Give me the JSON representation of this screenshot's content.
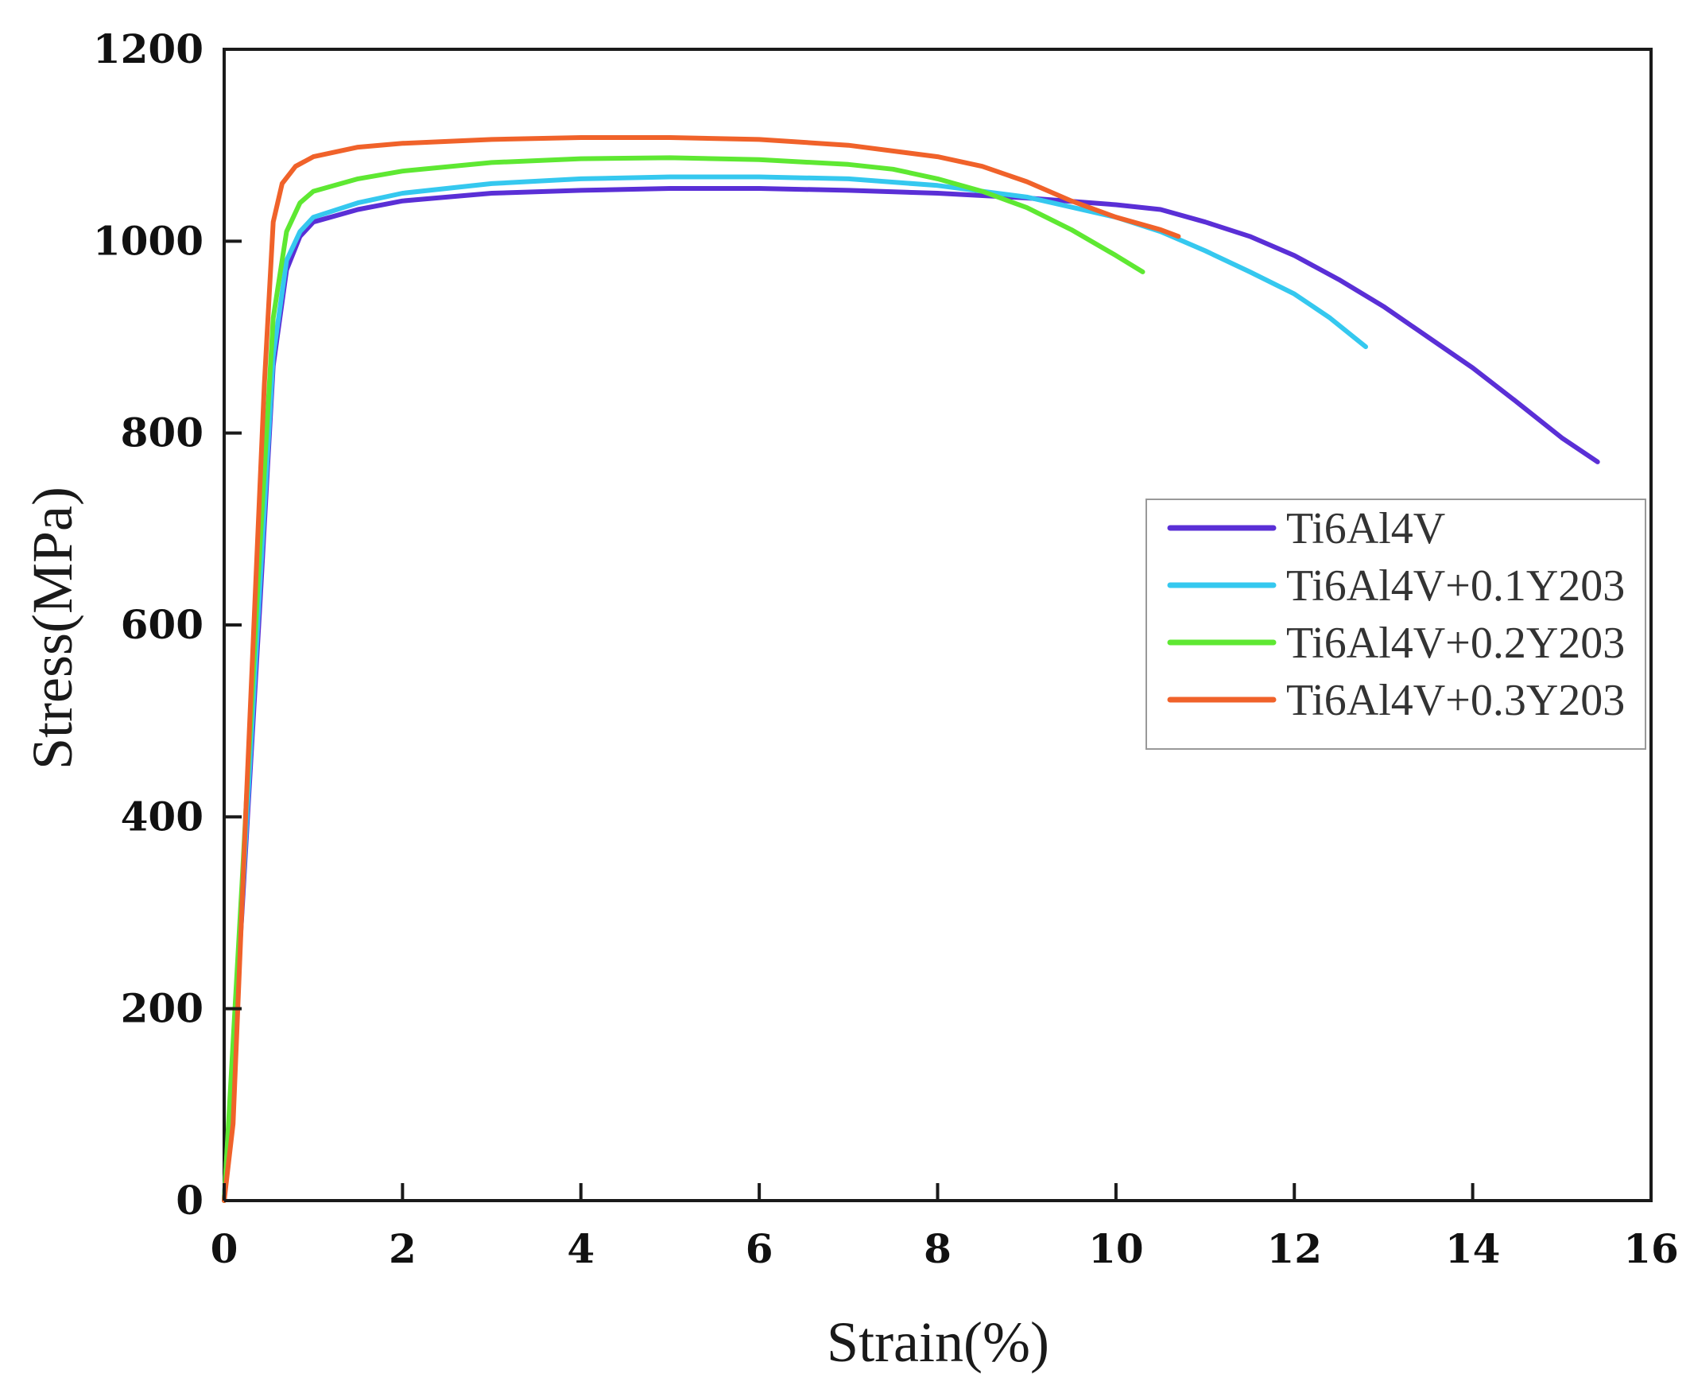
{
  "chart_data": {
    "type": "line",
    "title": "",
    "xlabel": "Strain(%)",
    "ylabel": "Stress(MPa)",
    "xlim": [
      0,
      16
    ],
    "ylim": [
      0,
      1200
    ],
    "xticks": [
      0,
      2,
      4,
      6,
      8,
      10,
      12,
      14,
      16
    ],
    "yticks": [
      0,
      200,
      400,
      600,
      800,
      1000,
      1200
    ],
    "grid": false,
    "legend_position": "right",
    "series": [
      {
        "name": "Ti6Al4V",
        "color": "#5a2fd6",
        "points": [
          [
            0,
            0
          ],
          [
            0.2,
            300
          ],
          [
            0.4,
            620
          ],
          [
            0.55,
            870
          ],
          [
            0.7,
            970
          ],
          [
            0.85,
            1005
          ],
          [
            1,
            1020
          ],
          [
            1.5,
            1033
          ],
          [
            2,
            1042
          ],
          [
            3,
            1050
          ],
          [
            4,
            1053
          ],
          [
            5,
            1055
          ],
          [
            6,
            1055
          ],
          [
            7,
            1053
          ],
          [
            8,
            1050
          ],
          [
            9,
            1045
          ],
          [
            10,
            1038
          ],
          [
            10.5,
            1033
          ],
          [
            11,
            1020
          ],
          [
            11.5,
            1005
          ],
          [
            12,
            985
          ],
          [
            12.5,
            960
          ],
          [
            13,
            932
          ],
          [
            13.5,
            900
          ],
          [
            14,
            868
          ],
          [
            14.5,
            832
          ],
          [
            15,
            795
          ],
          [
            15.4,
            770
          ]
        ]
      },
      {
        "name": "Ti6Al4V+0.1Y203",
        "color": "#35c8ef",
        "points": [
          [
            0,
            0
          ],
          [
            0.2,
            310
          ],
          [
            0.4,
            640
          ],
          [
            0.55,
            880
          ],
          [
            0.7,
            980
          ],
          [
            0.85,
            1010
          ],
          [
            1,
            1025
          ],
          [
            1.5,
            1040
          ],
          [
            2,
            1050
          ],
          [
            3,
            1060
          ],
          [
            4,
            1065
          ],
          [
            5,
            1067
          ],
          [
            6,
            1067
          ],
          [
            7,
            1065
          ],
          [
            8,
            1058
          ],
          [
            9,
            1046
          ],
          [
            10,
            1025
          ],
          [
            10.5,
            1010
          ],
          [
            11,
            990
          ],
          [
            11.5,
            968
          ],
          [
            12,
            945
          ],
          [
            12.4,
            920
          ],
          [
            12.8,
            890
          ]
        ]
      },
      {
        "name": "Ti6Al4V+0.2Y203",
        "color": "#5ee832",
        "points": [
          [
            0,
            0
          ],
          [
            0.2,
            330
          ],
          [
            0.4,
            680
          ],
          [
            0.55,
            920
          ],
          [
            0.7,
            1010
          ],
          [
            0.85,
            1040
          ],
          [
            1,
            1052
          ],
          [
            1.5,
            1065
          ],
          [
            2,
            1073
          ],
          [
            3,
            1082
          ],
          [
            4,
            1086
          ],
          [
            5,
            1087
          ],
          [
            6,
            1085
          ],
          [
            7,
            1080
          ],
          [
            7.5,
            1075
          ],
          [
            8,
            1065
          ],
          [
            8.5,
            1052
          ],
          [
            9,
            1035
          ],
          [
            9.5,
            1012
          ],
          [
            10,
            985
          ],
          [
            10.3,
            968
          ]
        ]
      },
      {
        "name": "Ti6Al4V+0.3Y203",
        "color": "#f0622a",
        "points": [
          [
            0,
            0
          ],
          [
            0.1,
            80
          ],
          [
            0.25,
            420
          ],
          [
            0.45,
            850
          ],
          [
            0.55,
            1020
          ],
          [
            0.65,
            1060
          ],
          [
            0.8,
            1078
          ],
          [
            1,
            1088
          ],
          [
            1.5,
            1098
          ],
          [
            2,
            1102
          ],
          [
            3,
            1106
          ],
          [
            4,
            1108
          ],
          [
            5,
            1108
          ],
          [
            6,
            1106
          ],
          [
            7,
            1100
          ],
          [
            8,
            1088
          ],
          [
            8.5,
            1078
          ],
          [
            9,
            1062
          ],
          [
            9.5,
            1042
          ],
          [
            10,
            1025
          ],
          [
            10.5,
            1012
          ],
          [
            10.7,
            1005
          ]
        ]
      }
    ]
  }
}
